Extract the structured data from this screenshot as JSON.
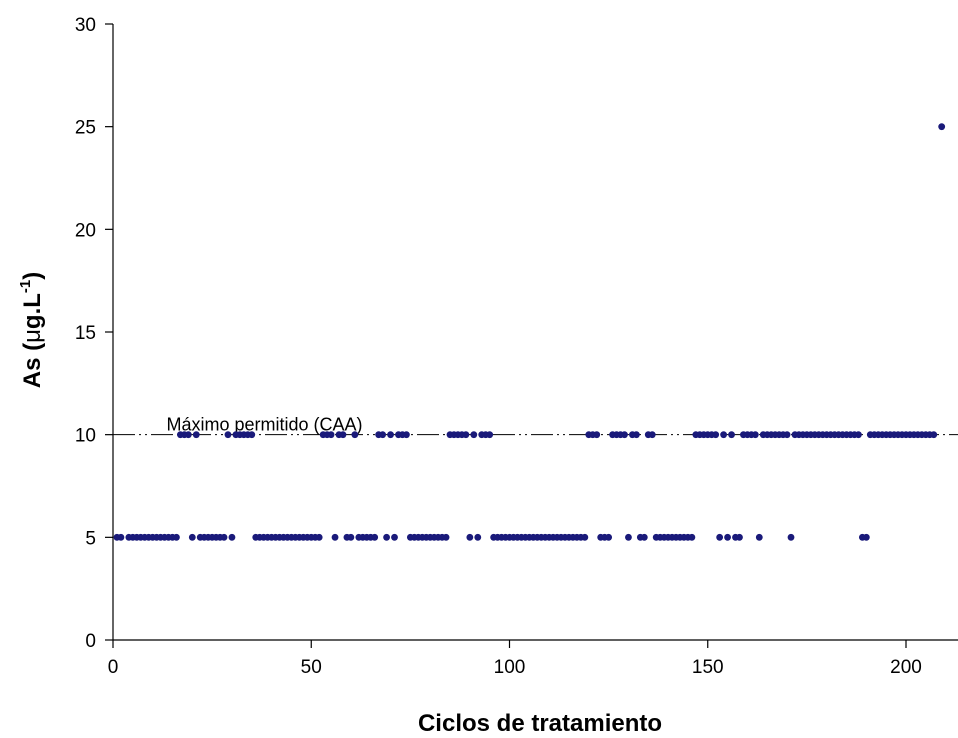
{
  "chart_data": {
    "type": "scatter",
    "title": "",
    "xlabel": "Ciclos de tratamiento",
    "ylabel_main": "As (",
    "ylabel_mu": "μ",
    "ylabel_unit": "g.L",
    "ylabel_exp": "-1",
    "ylabel_close": ")",
    "xlim": [
      0,
      212
    ],
    "ylim": [
      0,
      30
    ],
    "x_ticks": [
      "0",
      "50",
      "100",
      "150",
      "200"
    ],
    "y_ticks": [
      "0",
      "5",
      "10",
      "15",
      "20",
      "25",
      "30"
    ],
    "grid": false,
    "reference_line": {
      "value": 10,
      "label": "Máximo permitido (CAA)",
      "style": "dash-dot-dot"
    },
    "marker_color": "#1a1a7a",
    "series": [
      {
        "values": [
          [
            1,
            5
          ],
          [
            2,
            5
          ],
          [
            4,
            5
          ],
          [
            5,
            5
          ],
          [
            6,
            5
          ],
          [
            7,
            5
          ],
          [
            8,
            5
          ],
          [
            9,
            5
          ],
          [
            10,
            5
          ],
          [
            11,
            5
          ],
          [
            12,
            5
          ],
          [
            13,
            5
          ],
          [
            14,
            5
          ],
          [
            15,
            5
          ],
          [
            16,
            5
          ],
          [
            17,
            10
          ],
          [
            18,
            10
          ],
          [
            19,
            10
          ],
          [
            20,
            5
          ],
          [
            21,
            10
          ],
          [
            22,
            5
          ],
          [
            23,
            5
          ],
          [
            24,
            5
          ],
          [
            25,
            5
          ],
          [
            26,
            5
          ],
          [
            27,
            5
          ],
          [
            28,
            5
          ],
          [
            29,
            10
          ],
          [
            30,
            5
          ],
          [
            31,
            10
          ],
          [
            32,
            10
          ],
          [
            33,
            10
          ],
          [
            34,
            10
          ],
          [
            35,
            10
          ],
          [
            36,
            5
          ],
          [
            37,
            5
          ],
          [
            38,
            5
          ],
          [
            39,
            5
          ],
          [
            40,
            5
          ],
          [
            41,
            5
          ],
          [
            42,
            5
          ],
          [
            43,
            5
          ],
          [
            44,
            5
          ],
          [
            45,
            5
          ],
          [
            46,
            5
          ],
          [
            47,
            5
          ],
          [
            48,
            5
          ],
          [
            49,
            5
          ],
          [
            50,
            5
          ],
          [
            51,
            5
          ],
          [
            52,
            5
          ],
          [
            53,
            10
          ],
          [
            54,
            10
          ],
          [
            55,
            10
          ],
          [
            56,
            5
          ],
          [
            57,
            10
          ],
          [
            58,
            10
          ],
          [
            59,
            5
          ],
          [
            60,
            5
          ],
          [
            61,
            10
          ],
          [
            62,
            5
          ],
          [
            63,
            5
          ],
          [
            64,
            5
          ],
          [
            65,
            5
          ],
          [
            66,
            5
          ],
          [
            67,
            10
          ],
          [
            68,
            10
          ],
          [
            69,
            5
          ],
          [
            70,
            10
          ],
          [
            71,
            5
          ],
          [
            72,
            10
          ],
          [
            73,
            10
          ],
          [
            74,
            10
          ],
          [
            75,
            5
          ],
          [
            76,
            5
          ],
          [
            77,
            5
          ],
          [
            78,
            5
          ],
          [
            79,
            5
          ],
          [
            80,
            5
          ],
          [
            81,
            5
          ],
          [
            82,
            5
          ],
          [
            83,
            5
          ],
          [
            84,
            5
          ],
          [
            85,
            10
          ],
          [
            86,
            10
          ],
          [
            87,
            10
          ],
          [
            88,
            10
          ],
          [
            89,
            10
          ],
          [
            90,
            5
          ],
          [
            91,
            10
          ],
          [
            92,
            5
          ],
          [
            93,
            10
          ],
          [
            94,
            10
          ],
          [
            95,
            10
          ],
          [
            96,
            5
          ],
          [
            97,
            5
          ],
          [
            98,
            5
          ],
          [
            99,
            5
          ],
          [
            100,
            5
          ],
          [
            101,
            5
          ],
          [
            102,
            5
          ],
          [
            103,
            5
          ],
          [
            104,
            5
          ],
          [
            105,
            5
          ],
          [
            106,
            5
          ],
          [
            107,
            5
          ],
          [
            108,
            5
          ],
          [
            109,
            5
          ],
          [
            110,
            5
          ],
          [
            111,
            5
          ],
          [
            112,
            5
          ],
          [
            113,
            5
          ],
          [
            114,
            5
          ],
          [
            115,
            5
          ],
          [
            116,
            5
          ],
          [
            117,
            5
          ],
          [
            118,
            5
          ],
          [
            119,
            5
          ],
          [
            120,
            10
          ],
          [
            121,
            10
          ],
          [
            122,
            10
          ],
          [
            123,
            5
          ],
          [
            124,
            5
          ],
          [
            125,
            5
          ],
          [
            126,
            10
          ],
          [
            127,
            10
          ],
          [
            128,
            10
          ],
          [
            129,
            10
          ],
          [
            130,
            5
          ],
          [
            131,
            10
          ],
          [
            132,
            10
          ],
          [
            133,
            5
          ],
          [
            134,
            5
          ],
          [
            135,
            10
          ],
          [
            136,
            10
          ],
          [
            137,
            5
          ],
          [
            138,
            5
          ],
          [
            139,
            5
          ],
          [
            140,
            5
          ],
          [
            141,
            5
          ],
          [
            142,
            5
          ],
          [
            143,
            5
          ],
          [
            144,
            5
          ],
          [
            145,
            5
          ],
          [
            146,
            5
          ],
          [
            147,
            10
          ],
          [
            148,
            10
          ],
          [
            149,
            10
          ],
          [
            150,
            10
          ],
          [
            151,
            10
          ],
          [
            152,
            10
          ],
          [
            153,
            5
          ],
          [
            154,
            10
          ],
          [
            155,
            5
          ],
          [
            156,
            10
          ],
          [
            157,
            5
          ],
          [
            158,
            5
          ],
          [
            159,
            10
          ],
          [
            160,
            10
          ],
          [
            161,
            10
          ],
          [
            162,
            10
          ],
          [
            163,
            5
          ],
          [
            164,
            10
          ],
          [
            165,
            10
          ],
          [
            166,
            10
          ],
          [
            167,
            10
          ],
          [
            168,
            10
          ],
          [
            169,
            10
          ],
          [
            170,
            10
          ],
          [
            171,
            5
          ],
          [
            172,
            10
          ],
          [
            173,
            10
          ],
          [
            174,
            10
          ],
          [
            175,
            10
          ],
          [
            176,
            10
          ],
          [
            177,
            10
          ],
          [
            178,
            10
          ],
          [
            179,
            10
          ],
          [
            180,
            10
          ],
          [
            181,
            10
          ],
          [
            182,
            10
          ],
          [
            183,
            10
          ],
          [
            184,
            10
          ],
          [
            185,
            10
          ],
          [
            186,
            10
          ],
          [
            187,
            10
          ],
          [
            188,
            10
          ],
          [
            189,
            5
          ],
          [
            190,
            5
          ],
          [
            191,
            10
          ],
          [
            192,
            10
          ],
          [
            193,
            10
          ],
          [
            194,
            10
          ],
          [
            195,
            10
          ],
          [
            196,
            10
          ],
          [
            197,
            10
          ],
          [
            198,
            10
          ],
          [
            199,
            10
          ],
          [
            200,
            10
          ],
          [
            201,
            10
          ],
          [
            202,
            10
          ],
          [
            203,
            10
          ],
          [
            204,
            10
          ],
          [
            205,
            10
          ],
          [
            206,
            10
          ],
          [
            207,
            10
          ],
          [
            209,
            25
          ]
        ]
      }
    ]
  }
}
